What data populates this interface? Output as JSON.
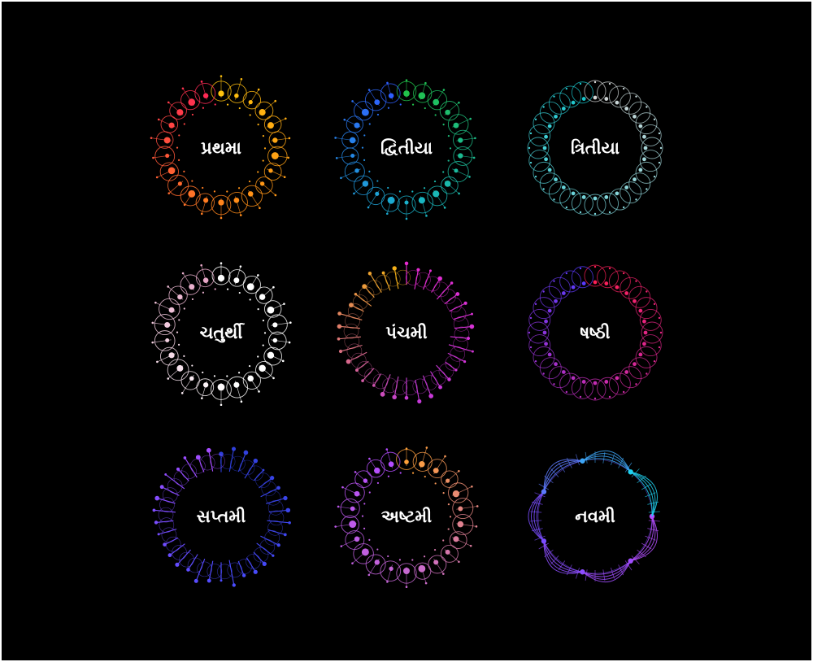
{
  "background": "#000000",
  "badges": [
    {
      "label": "પ્રથમા",
      "style": "dots",
      "colors": [
        "#ffc20e",
        "#ff8a1a",
        "#ff2a55"
      ]
    },
    {
      "label": "દ્વિતીયા",
      "style": "dots",
      "colors": [
        "#21c24a",
        "#19b5c8",
        "#2f5fff"
      ]
    },
    {
      "label": "ત્રિતીયા",
      "style": "rings",
      "colors": [
        "#d6d6d6",
        "#7fd7dc",
        "#19c8cf"
      ]
    },
    {
      "label": "ચતુર્થી",
      "style": "dots",
      "colors": [
        "#ffffff",
        "#ffffff",
        "#e8a8c8"
      ]
    },
    {
      "label": "પંચમી",
      "style": "spikes",
      "colors": [
        "#e62bd1",
        "#c43ad8",
        "#f4b019"
      ]
    },
    {
      "label": "ષષ્ઠી",
      "style": "rings",
      "colors": [
        "#ff1f55",
        "#c92bb0",
        "#5a3bff"
      ]
    },
    {
      "label": "સપ્તમી",
      "style": "spikes",
      "colors": [
        "#2e3fd9",
        "#4b4cff",
        "#a64dff"
      ]
    },
    {
      "label": "અષ્ટમી",
      "style": "dots",
      "colors": [
        "#ffa13a",
        "#c86ad0",
        "#b44dff"
      ]
    },
    {
      "label": "નવમી",
      "style": "helix",
      "colors": [
        "#b44dff",
        "#7a4dff",
        "#1fd1f0"
      ]
    }
  ]
}
